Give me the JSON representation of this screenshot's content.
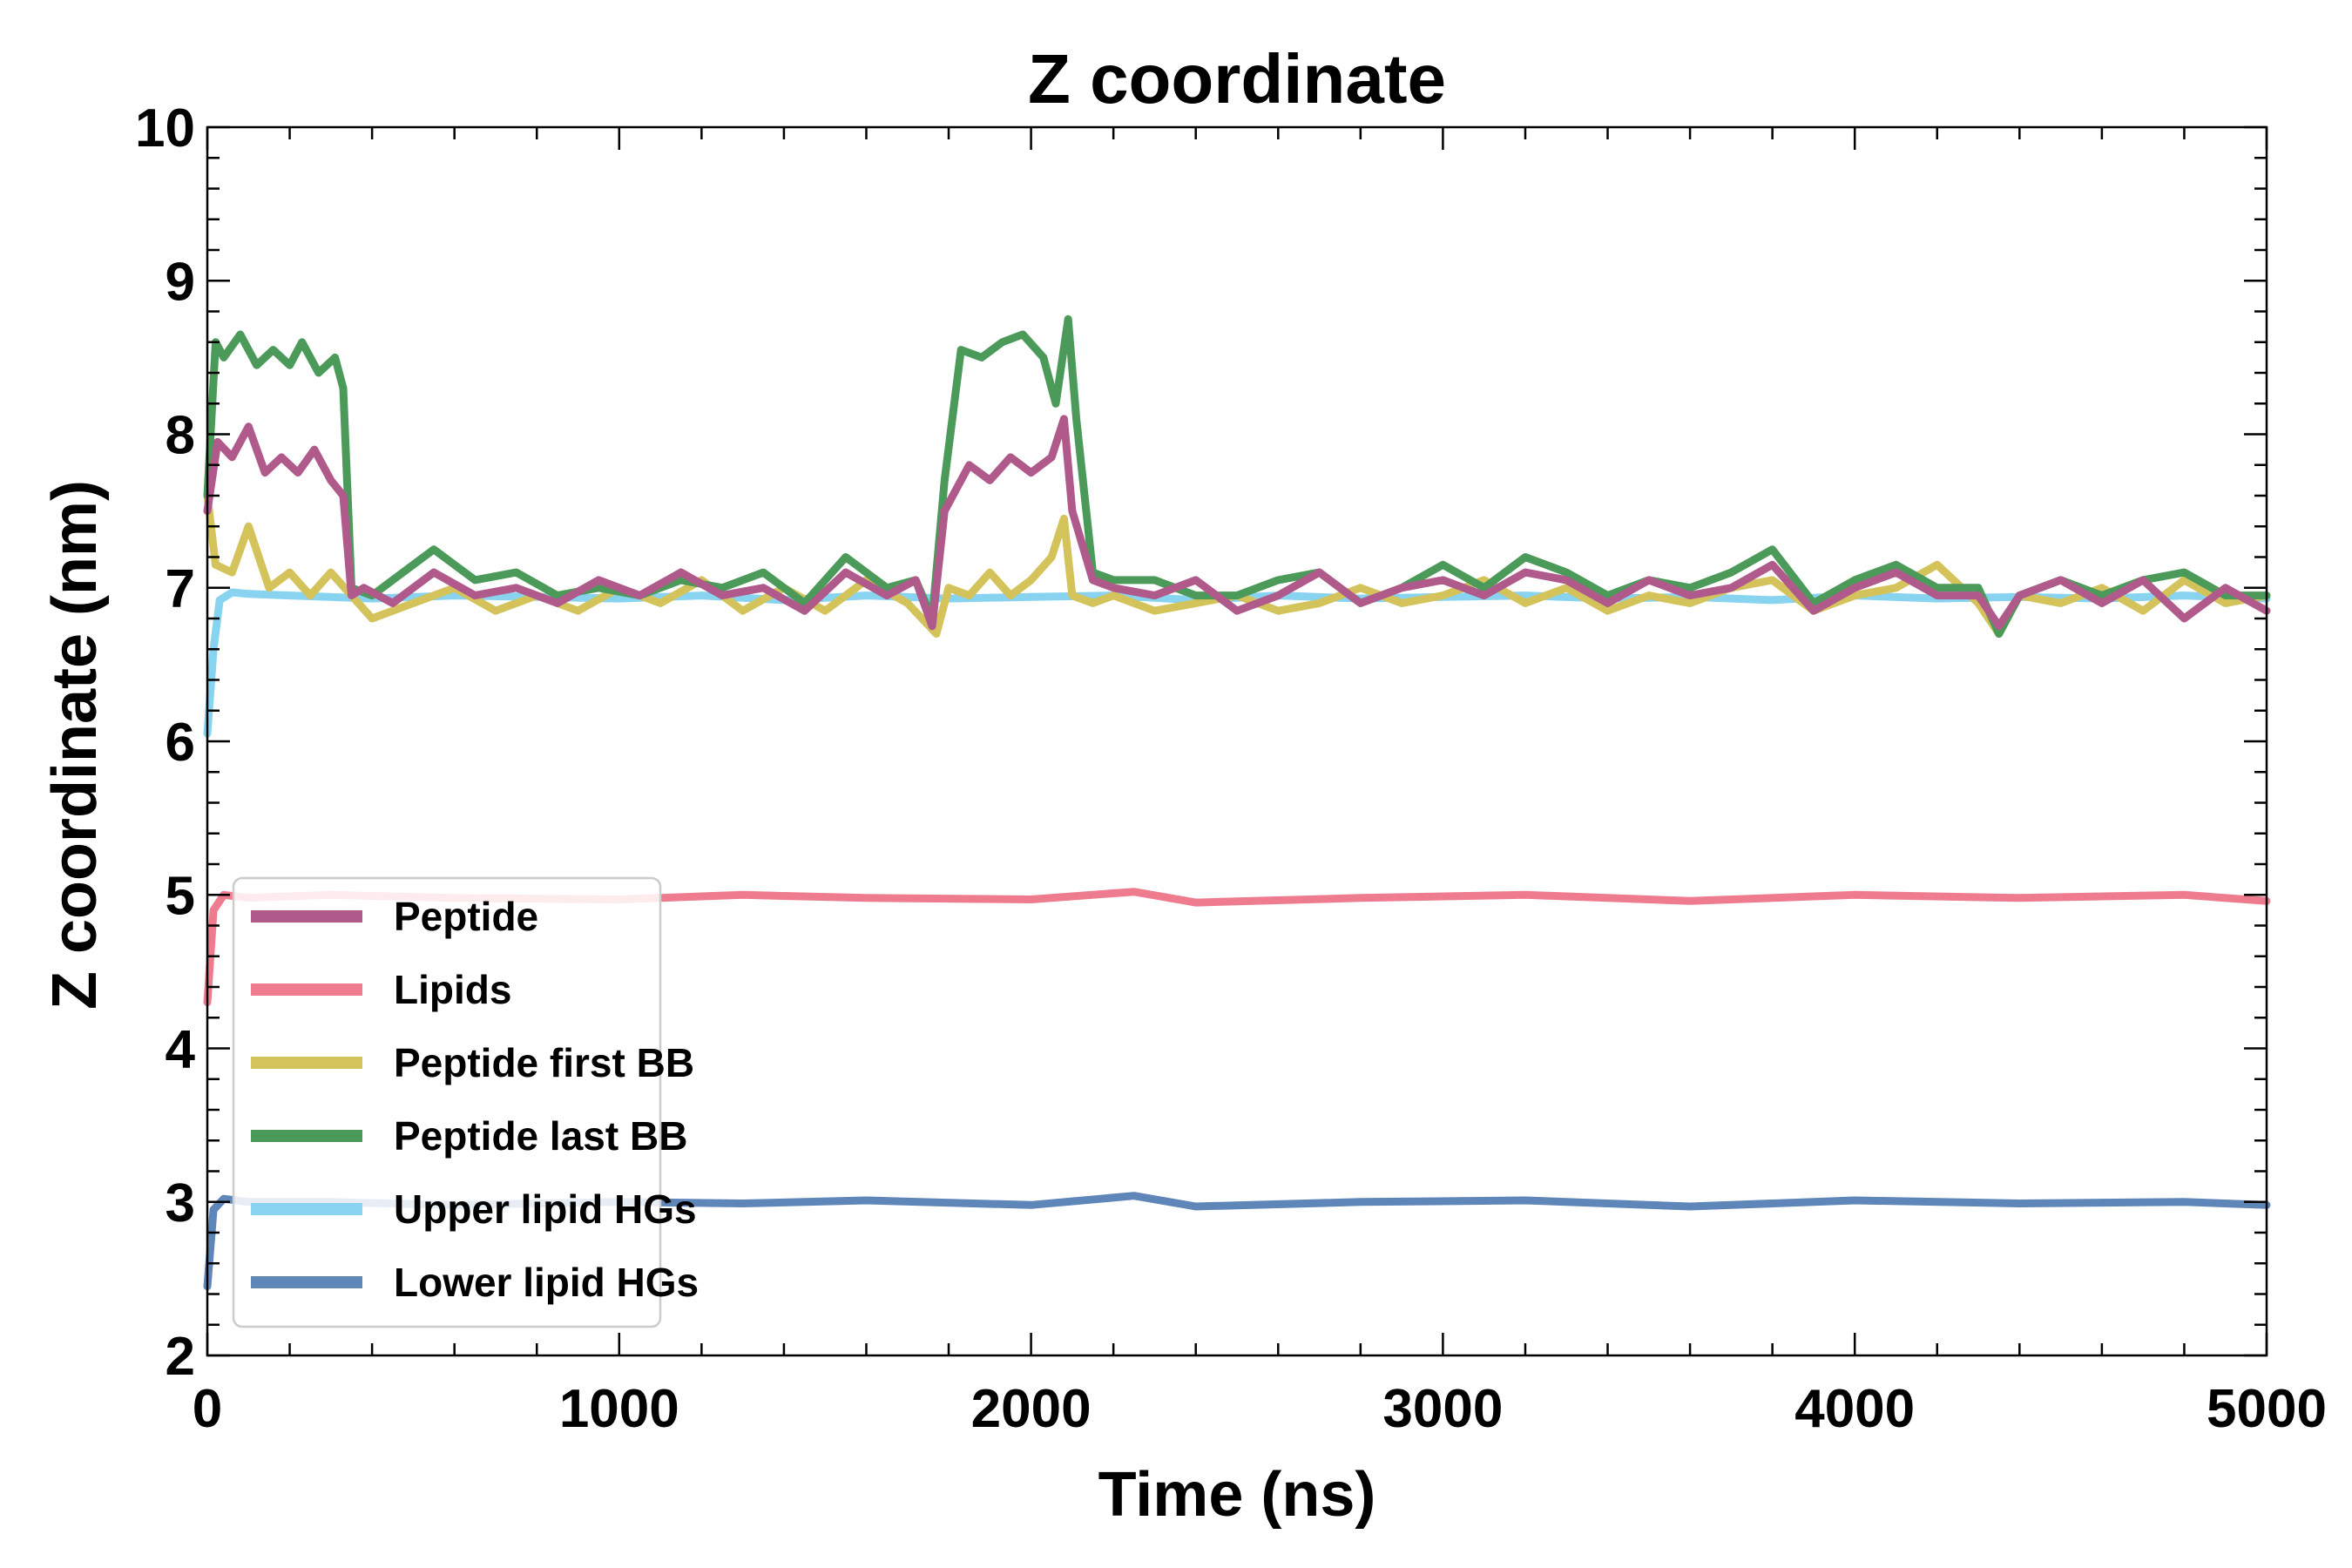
{
  "chart_data": {
    "type": "line",
    "title": "Z coordinate",
    "xlabel": "Time (ns)",
    "ylabel": "Z coordinate (nm)",
    "xlim": [
      0,
      5000
    ],
    "ylim": [
      2,
      10
    ],
    "xticks": [
      0,
      1000,
      2000,
      3000,
      4000,
      5000
    ],
    "yticks": [
      2,
      3,
      4,
      5,
      6,
      7,
      8,
      9,
      10
    ],
    "grid": false,
    "legend_position": "bottom-left",
    "series": [
      {
        "name": "Peptide",
        "color": "#b05a8c",
        "x": [
          0,
          25,
          60,
          100,
          140,
          180,
          220,
          260,
          300,
          330,
          350,
          380,
          450,
          550,
          650,
          750,
          850,
          950,
          1050,
          1150,
          1250,
          1350,
          1450,
          1550,
          1650,
          1720,
          1760,
          1790,
          1850,
          1900,
          1950,
          2000,
          2050,
          2080,
          2100,
          2150,
          2200,
          2300,
          2400,
          2500,
          2600,
          2700,
          2800,
          2900,
          3000,
          3100,
          3200,
          3300,
          3400,
          3500,
          3600,
          3700,
          3800,
          3900,
          4000,
          4100,
          4200,
          4300,
          4350,
          4400,
          4500,
          4600,
          4700,
          4800,
          4900,
          5000
        ],
        "values": [
          7.5,
          7.95,
          7.85,
          8.05,
          7.75,
          7.85,
          7.75,
          7.9,
          7.7,
          7.6,
          6.95,
          7.0,
          6.9,
          7.1,
          6.95,
          7.0,
          6.9,
          7.05,
          6.95,
          7.1,
          6.95,
          7.0,
          6.85,
          7.1,
          6.95,
          7.05,
          6.75,
          7.5,
          7.8,
          7.7,
          7.85,
          7.75,
          7.85,
          8.1,
          7.5,
          7.05,
          7.0,
          6.95,
          7.05,
          6.85,
          6.95,
          7.1,
          6.9,
          7.0,
          7.05,
          6.95,
          7.1,
          7.05,
          6.9,
          7.05,
          6.95,
          7.0,
          7.15,
          6.85,
          7.0,
          7.1,
          6.95,
          6.95,
          6.75,
          6.95,
          7.05,
          6.9,
          7.05,
          6.8,
          7.0,
          6.85
        ]
      },
      {
        "name": "Lipids",
        "color": "#ee7c8e",
        "x": [
          0,
          15,
          40,
          100,
          300,
          600,
          1000,
          1300,
          1600,
          2000,
          2250,
          2400,
          2800,
          3200,
          3600,
          4000,
          4400,
          4800,
          5000
        ],
        "values": [
          4.3,
          4.9,
          5.0,
          4.98,
          5.0,
          4.98,
          4.97,
          5.0,
          4.98,
          4.97,
          5.02,
          4.95,
          4.98,
          5.0,
          4.96,
          5.0,
          4.98,
          5.0,
          4.96
        ]
      },
      {
        "name": "Peptide first BB",
        "color": "#d4c35a",
        "x": [
          0,
          20,
          60,
          100,
          150,
          200,
          250,
          300,
          350,
          400,
          500,
          600,
          700,
          800,
          900,
          1000,
          1100,
          1200,
          1300,
          1400,
          1500,
          1600,
          1700,
          1770,
          1800,
          1850,
          1900,
          1950,
          2000,
          2050,
          2080,
          2100,
          2150,
          2200,
          2300,
          2400,
          2500,
          2600,
          2700,
          2800,
          2900,
          3000,
          3100,
          3200,
          3300,
          3400,
          3500,
          3600,
          3700,
          3800,
          3900,
          4000,
          4100,
          4200,
          4300,
          4350,
          4400,
          4500,
          4600,
          4700,
          4800,
          4900,
          5000
        ],
        "values": [
          7.6,
          7.15,
          7.1,
          7.4,
          7.0,
          7.1,
          6.95,
          7.1,
          6.95,
          6.8,
          6.9,
          7.0,
          6.85,
          6.95,
          6.85,
          7.0,
          6.9,
          7.05,
          6.85,
          7.0,
          6.85,
          7.05,
          6.9,
          6.7,
          7.0,
          6.95,
          7.1,
          6.95,
          7.05,
          7.2,
          7.45,
          6.95,
          6.9,
          6.95,
          6.85,
          6.9,
          6.95,
          6.85,
          6.9,
          7.0,
          6.9,
          6.95,
          7.05,
          6.9,
          7.0,
          6.85,
          6.95,
          6.9,
          7.0,
          7.05,
          6.85,
          6.95,
          7.0,
          7.15,
          6.9,
          6.7,
          6.95,
          6.9,
          7.0,
          6.85,
          7.05,
          6.9,
          6.95
        ]
      },
      {
        "name": "Peptide last BB",
        "color": "#4c9a5a",
        "x": [
          0,
          20,
          40,
          80,
          120,
          160,
          200,
          230,
          270,
          310,
          330,
          350,
          400,
          450,
          550,
          650,
          750,
          850,
          950,
          1050,
          1150,
          1250,
          1350,
          1450,
          1550,
          1650,
          1720,
          1760,
          1790,
          1830,
          1880,
          1930,
          1980,
          2030,
          2060,
          2090,
          2110,
          2150,
          2200,
          2300,
          2400,
          2500,
          2600,
          2700,
          2800,
          2900,
          3000,
          3100,
          3200,
          3300,
          3400,
          3500,
          3600,
          3700,
          3800,
          3900,
          4000,
          4100,
          4200,
          4300,
          4350,
          4400,
          4500,
          4600,
          4700,
          4800,
          4900,
          5000
        ],
        "values": [
          7.6,
          8.6,
          8.5,
          8.65,
          8.45,
          8.55,
          8.45,
          8.6,
          8.4,
          8.5,
          8.3,
          7.0,
          6.95,
          7.05,
          7.25,
          7.05,
          7.1,
          6.95,
          7.0,
          6.95,
          7.05,
          7.0,
          7.1,
          6.9,
          7.2,
          7.0,
          7.05,
          6.8,
          7.7,
          8.55,
          8.5,
          8.6,
          8.65,
          8.5,
          8.2,
          8.75,
          8.1,
          7.1,
          7.05,
          7.05,
          6.95,
          6.95,
          7.05,
          7.1,
          6.9,
          7.0,
          7.15,
          7.0,
          7.2,
          7.1,
          6.95,
          7.05,
          7.0,
          7.1,
          7.25,
          6.9,
          7.05,
          7.15,
          7.0,
          7.0,
          6.7,
          6.95,
          7.05,
          6.95,
          7.05,
          7.1,
          6.95,
          6.95
        ]
      },
      {
        "name": "Upper lipid HGs",
        "color": "#87d3f0",
        "x": [
          0,
          15,
          30,
          60,
          100,
          200,
          400,
          600,
          800,
          1000,
          1200,
          1400,
          1600,
          1800,
          2000,
          2200,
          2400,
          2600,
          2800,
          3000,
          3200,
          3400,
          3600,
          3800,
          4000,
          4200,
          4400,
          4600,
          4800,
          5000
        ],
        "values": [
          6.05,
          6.6,
          6.92,
          6.97,
          6.96,
          6.95,
          6.93,
          6.95,
          6.94,
          6.93,
          6.95,
          6.92,
          6.95,
          6.93,
          6.94,
          6.95,
          6.92,
          6.95,
          6.93,
          6.94,
          6.95,
          6.93,
          6.94,
          6.92,
          6.95,
          6.93,
          6.94,
          6.93,
          6.95,
          6.93
        ]
      },
      {
        "name": "Lower lipid HGs",
        "color": "#5f86b8",
        "x": [
          0,
          15,
          40,
          100,
          300,
          600,
          1000,
          1300,
          1600,
          2000,
          2250,
          2400,
          2800,
          3200,
          3600,
          4000,
          4400,
          4800,
          5000
        ],
        "values": [
          2.45,
          2.95,
          3.02,
          3.0,
          3.0,
          2.98,
          3.0,
          2.99,
          3.01,
          2.98,
          3.04,
          2.97,
          3.0,
          3.01,
          2.97,
          3.01,
          2.99,
          3.0,
          2.98
        ]
      }
    ]
  }
}
